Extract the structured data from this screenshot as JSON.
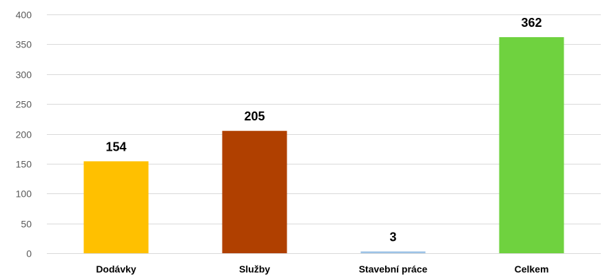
{
  "chart_data": {
    "type": "bar",
    "title": "",
    "xlabel": "",
    "ylabel": "",
    "categories": [
      "Dodávky",
      "Služby",
      "Stavební práce",
      "Celkem"
    ],
    "values": [
      154,
      205,
      3,
      362
    ],
    "data_labels": [
      "154",
      "205",
      "3",
      "362"
    ],
    "colors": [
      "#FFC000",
      "#B04000",
      "#9DC3E6",
      "#6FD23F"
    ],
    "ylim": [
      0,
      400
    ],
    "yticks": [
      0,
      50,
      100,
      150,
      200,
      250,
      300,
      350,
      400
    ],
    "ytick_labels": [
      "0",
      "50",
      "100",
      "150",
      "200",
      "250",
      "300",
      "350",
      "400"
    ],
    "grid": true,
    "gridline_color": "#d9d9d9",
    "legend": "none"
  }
}
